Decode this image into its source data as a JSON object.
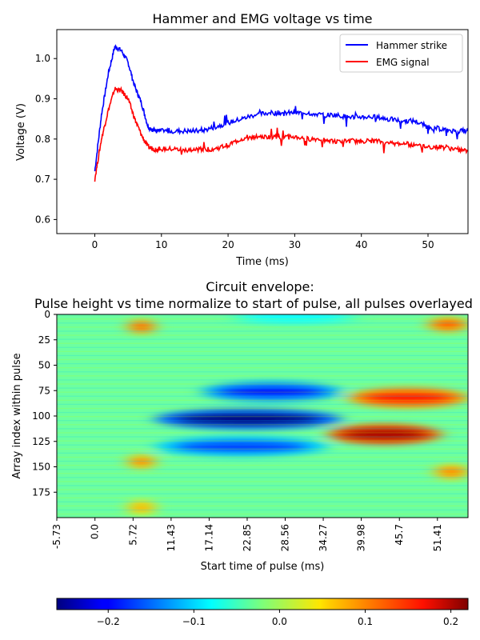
{
  "chart_data": [
    {
      "type": "line",
      "title": "Hammer and EMG voltage vs time",
      "xlabel": "Time (ms)",
      "ylabel": "Voltage (V)",
      "xlim": [
        -5.7,
        56
      ],
      "ylim": [
        0.565,
        1.072
      ],
      "xticks": [
        0,
        10,
        20,
        30,
        40,
        50
      ],
      "yticks": [
        0.6,
        0.7,
        0.8,
        0.9,
        1.0
      ],
      "xtick_labels": [
        "0",
        "10",
        "20",
        "30",
        "40",
        "50"
      ],
      "ytick_labels": [
        "0.6",
        "0.7",
        "0.8",
        "0.9",
        "1.0"
      ],
      "legend_position": "top-right",
      "series": [
        {
          "name": "Hammer strike",
          "color": "#0000ff",
          "x": [
            0,
            1,
            2,
            3,
            4,
            5,
            6,
            7,
            8,
            9,
            10,
            12,
            14,
            16,
            18,
            20,
            22,
            24,
            26,
            28,
            30,
            32,
            34,
            36,
            38,
            40,
            42,
            44,
            46,
            48,
            50,
            52,
            54,
            56
          ],
          "y": [
            0.72,
            0.86,
            0.96,
            1.03,
            1.02,
            0.99,
            0.93,
            0.89,
            0.83,
            0.82,
            0.82,
            0.82,
            0.82,
            0.82,
            0.83,
            0.84,
            0.85,
            0.86,
            0.865,
            0.865,
            0.865,
            0.865,
            0.86,
            0.86,
            0.855,
            0.855,
            0.855,
            0.85,
            0.845,
            0.845,
            0.83,
            0.825,
            0.82,
            0.82
          ]
        },
        {
          "name": "EMG signal",
          "color": "#ff0000",
          "x": [
            0,
            1,
            2,
            3,
            4,
            5,
            6,
            7,
            8,
            9,
            10,
            12,
            14,
            16,
            18,
            20,
            22,
            24,
            26,
            28,
            30,
            32,
            34,
            36,
            38,
            40,
            42,
            44,
            46,
            48,
            50,
            52,
            54,
            56
          ],
          "y": [
            0.7,
            0.8,
            0.87,
            0.925,
            0.92,
            0.9,
            0.85,
            0.81,
            0.78,
            0.775,
            0.775,
            0.775,
            0.77,
            0.775,
            0.775,
            0.785,
            0.8,
            0.805,
            0.805,
            0.805,
            0.805,
            0.8,
            0.8,
            0.795,
            0.795,
            0.795,
            0.795,
            0.79,
            0.79,
            0.785,
            0.78,
            0.78,
            0.775,
            0.77
          ]
        }
      ]
    },
    {
      "type": "heatmap",
      "title": "Circuit envelope:\nPulse height vs time normalize to start of pulse, all pulses overlayed",
      "title_lines": [
        "Circuit envelope:",
        "Pulse height vs time normalize to start of pulse, all pulses overlayed"
      ],
      "xlabel": "Start time of pulse (ms)",
      "ylabel": "Array index within pulse",
      "xlim": [
        -5.73,
        56
      ],
      "ylim": [
        0,
        200
      ],
      "xticks": [
        -5.73,
        0.0,
        5.72,
        11.43,
        17.14,
        22.85,
        28.56,
        34.27,
        39.98,
        45.7,
        51.41
      ],
      "xtick_labels": [
        "-5.73",
        "0.0",
        "5.72",
        "11.43",
        "17.14",
        "22.85",
        "28.56",
        "34.27",
        "39.98",
        "45.7",
        "51.41"
      ],
      "yticks": [
        0,
        25,
        50,
        75,
        100,
        125,
        150,
        175
      ],
      "ytick_labels": [
        "0",
        "25",
        "50",
        "75",
        "100",
        "125",
        "150",
        "175"
      ],
      "colormap": "jet",
      "colorbar": {
        "range": [
          -0.26,
          0.22
        ],
        "ticks": [
          -0.2,
          -0.1,
          0.0,
          0.1,
          0.2
        ],
        "tick_labels": [
          "−0.2",
          "−0.1",
          "0.0",
          "0.1",
          "0.2"
        ],
        "position": "bottom"
      },
      "features": [
        {
          "t": 25,
          "idx": 103,
          "value": -0.26,
          "t_range": [
            9,
            37
          ]
        },
        {
          "t": 28,
          "idx": 76,
          "value": -0.2,
          "t_range": [
            16,
            37
          ]
        },
        {
          "t": 22,
          "idx": 130,
          "value": -0.17,
          "t_range": [
            9,
            35
          ]
        },
        {
          "t": 30,
          "idx": 3,
          "value": -0.08,
          "t_range": [
            20,
            40
          ]
        },
        {
          "t": 45,
          "idx": 118,
          "value": 0.2,
          "t_range": [
            35,
            52
          ]
        },
        {
          "t": 50,
          "idx": 82,
          "value": 0.15,
          "t_range": [
            38,
            56
          ]
        },
        {
          "t": 7,
          "idx": 12,
          "value": 0.12,
          "t_range": [
            5,
            9
          ]
        },
        {
          "t": 7,
          "idx": 145,
          "value": 0.1,
          "t_range": [
            5,
            9
          ]
        },
        {
          "t": 7,
          "idx": 190,
          "value": 0.08,
          "t_range": [
            5,
            9
          ]
        },
        {
          "t": 54,
          "idx": 10,
          "value": 0.12,
          "t_range": [
            50,
            56
          ]
        },
        {
          "t": 54,
          "idx": 155,
          "value": 0.1,
          "t_range": [
            51,
            56
          ]
        }
      ]
    }
  ]
}
